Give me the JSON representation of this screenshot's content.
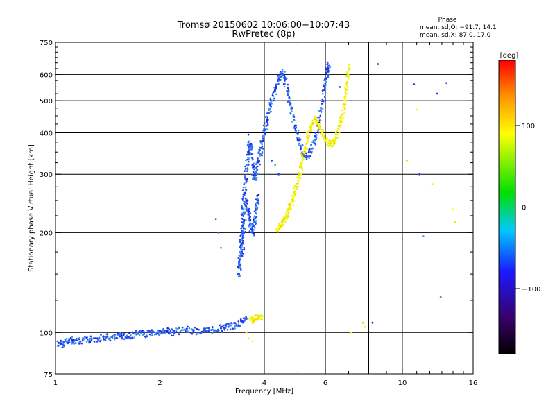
{
  "chart_data": {
    "type": "scatter",
    "title": "Tromsø 20150602 10:06:00−10:07:43",
    "subtitle": "RwPretec (8p)",
    "xlabel": "Frequency [MHz]",
    "ylabel": "Stationary phase Virtual Height [km]",
    "x_scale": "log",
    "y_scale": "log",
    "xlim": [
      1,
      16
    ],
    "ylim": [
      75,
      750
    ],
    "x_ticks": [
      {
        "value": 1,
        "label": "1"
      },
      {
        "value": 2,
        "label": "2"
      },
      {
        "value": 4,
        "label": "4"
      },
      {
        "value": 6,
        "label": "6"
      },
      {
        "value": 10,
        "label": "10"
      },
      {
        "value": 16,
        "label": "16"
      }
    ],
    "x_grid": [
      2,
      4,
      6,
      8,
      10
    ],
    "y_ticks": [
      {
        "value": 75,
        "label": "75"
      },
      {
        "value": 100,
        "label": "100"
      },
      {
        "value": 200,
        "label": "200"
      },
      {
        "value": 300,
        "label": "300"
      },
      {
        "value": 400,
        "label": "400"
      },
      {
        "value": 500,
        "label": "500"
      },
      {
        "value": 600,
        "label": "600"
      },
      {
        "value": 750,
        "label": "750"
      }
    ],
    "y_grid": [
      100,
      200,
      300,
      400,
      500,
      600
    ],
    "grid": true,
    "stats": {
      "header": "Phase",
      "line_o": "mean, sd,O: −91.7, 14.1",
      "line_x": "mean, sd,X:  87.0, 17.0"
    },
    "colorbar": {
      "label": "[deg]",
      "range": [
        -180,
        180
      ],
      "ticks": [
        {
          "value": 100,
          "label": "100"
        },
        {
          "value": 0,
          "label": "0"
        },
        {
          "value": -100,
          "label": "−100"
        }
      ]
    },
    "series": [
      {
        "mode": "O",
        "phase_deg": -100,
        "segments": [
          {
            "points": [
              [
                1.02,
                93
              ],
              [
                1.05,
                92
              ],
              [
                1.08,
                94
              ],
              [
                1.12,
                95
              ],
              [
                1.18,
                94
              ],
              [
                1.25,
                95
              ],
              [
                1.32,
                96
              ],
              [
                1.4,
                97
              ],
              [
                1.48,
                96
              ],
              [
                1.55,
                98
              ],
              [
                1.62,
                97
              ],
              [
                1.7,
                99
              ],
              [
                1.8,
                99
              ],
              [
                1.9,
                100
              ],
              [
                2.0,
                100
              ],
              [
                2.1,
                101
              ],
              [
                2.2,
                100
              ],
              [
                2.35,
                102
              ],
              [
                2.5,
                101
              ],
              [
                2.7,
                101
              ],
              [
                2.85,
                102
              ],
              [
                3.0,
                103
              ],
              [
                3.15,
                104
              ],
              [
                3.3,
                105
              ],
              [
                3.45,
                108
              ],
              [
                3.55,
                110
              ]
            ]
          },
          {
            "points": [
              [
                3.38,
                150
              ],
              [
                3.4,
                160
              ],
              [
                3.42,
                175
              ],
              [
                3.44,
                190
              ],
              [
                3.46,
                210
              ],
              [
                3.48,
                235
              ],
              [
                3.5,
                260
              ],
              [
                3.53,
                290
              ],
              [
                3.56,
                320
              ],
              [
                3.6,
                350
              ],
              [
                3.63,
                370
              ],
              [
                3.66,
                360
              ],
              [
                3.7,
                320
              ],
              [
                3.75,
                290
              ],
              [
                3.8,
                300
              ],
              [
                3.86,
                330
              ],
              [
                3.92,
                360
              ],
              [
                3.98,
                390
              ],
              [
                4.05,
                420
              ],
              [
                4.12,
                460
              ],
              [
                4.2,
                500
              ],
              [
                4.3,
                540
              ],
              [
                4.4,
                580
              ],
              [
                4.5,
                610
              ],
              [
                4.58,
                580
              ],
              [
                4.68,
                520
              ],
              [
                4.78,
                470
              ],
              [
                4.9,
                420
              ],
              [
                5.02,
                380
              ],
              [
                5.15,
                350
              ],
              [
                5.3,
                340
              ],
              [
                5.45,
                350
              ],
              [
                5.6,
                380
              ],
              [
                5.75,
                430
              ],
              [
                5.9,
                500
              ],
              [
                6.02,
                570
              ],
              [
                6.1,
                620
              ],
              [
                6.15,
                640
              ]
            ]
          },
          {
            "points": [
              [
                3.45,
                170
              ],
              [
                3.48,
                200
              ],
              [
                3.52,
                230
              ],
              [
                3.55,
                250
              ],
              [
                3.6,
                230
              ],
              [
                3.65,
                210
              ],
              [
                3.7,
                200
              ],
              [
                3.75,
                215
              ],
              [
                3.8,
                240
              ],
              [
                3.85,
                260
              ]
            ]
          }
        ],
        "scatter": [
          [
            2.9,
            220
          ],
          [
            2.95,
            200
          ],
          [
            3.0,
            180
          ],
          [
            3.6,
            395
          ],
          [
            4.2,
            330
          ],
          [
            4.3,
            320
          ],
          [
            4.4,
            300
          ],
          [
            6.6,
            550
          ],
          [
            8.5,
            645
          ],
          [
            10.8,
            560
          ],
          [
            11.2,
            300
          ],
          [
            11.5,
            195
          ],
          [
            12.6,
            525
          ],
          [
            13.4,
            565
          ],
          [
            12.9,
            128
          ],
          [
            8.2,
            107
          ]
        ]
      },
      {
        "mode": "X",
        "phase_deg": 87,
        "segments": [
          {
            "points": [
              [
                4.35,
                205
              ],
              [
                4.45,
                210
              ],
              [
                4.55,
                218
              ],
              [
                4.65,
                225
              ],
              [
                4.75,
                240
              ],
              [
                4.85,
                255
              ],
              [
                4.95,
                275
              ],
              [
                5.05,
                300
              ],
              [
                5.15,
                330
              ],
              [
                5.25,
                360
              ],
              [
                5.35,
                390
              ],
              [
                5.45,
                420
              ],
              [
                5.6,
                440
              ],
              [
                5.75,
                420
              ],
              [
                5.9,
                395
              ],
              [
                6.05,
                380
              ],
              [
                6.2,
                370
              ],
              [
                6.35,
                375
              ],
              [
                6.5,
                395
              ],
              [
                6.65,
                430
              ],
              [
                6.8,
                480
              ],
              [
                6.9,
                540
              ],
              [
                6.95,
                600
              ],
              [
                7.0,
                640
              ]
            ]
          },
          {
            "points": [
              [
                3.65,
                109
              ],
              [
                3.75,
                110
              ],
              [
                3.85,
                111
              ],
              [
                3.95,
                112
              ]
            ]
          }
        ],
        "scatter": [
          [
            3.55,
            100
          ],
          [
            3.6,
            96
          ],
          [
            10.3,
            330
          ],
          [
            11.0,
            470
          ],
          [
            12.2,
            280
          ],
          [
            14.0,
            235
          ],
          [
            14.2,
            215
          ],
          [
            7.7,
            107
          ],
          [
            7.8,
            104
          ],
          [
            7.1,
            100
          ],
          [
            3.7,
            94
          ]
        ]
      }
    ]
  }
}
